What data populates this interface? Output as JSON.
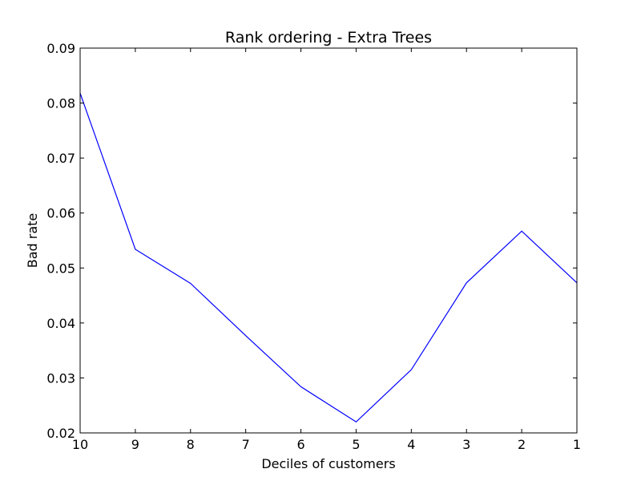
{
  "chart_data": {
    "type": "line",
    "title": "Rank ordering - Extra Trees",
    "xlabel": "Deciles of customers",
    "ylabel": "Bad rate",
    "categories": [
      "10",
      "9",
      "8",
      "7",
      "6",
      "5",
      "4",
      "3",
      "2",
      "1"
    ],
    "series": [
      {
        "values": [
          0.0818,
          0.0534,
          0.0472,
          0.0377,
          0.0284,
          0.022,
          0.0315,
          0.0473,
          0.0567,
          0.0473
        ],
        "color": "#0000ff"
      }
    ],
    "ylim": [
      0.02,
      0.09
    ],
    "yticks": [
      "0.02",
      "0.03",
      "0.04",
      "0.05",
      "0.06",
      "0.07",
      "0.08",
      "0.09"
    ],
    "grid": false,
    "legend": "none"
  }
}
